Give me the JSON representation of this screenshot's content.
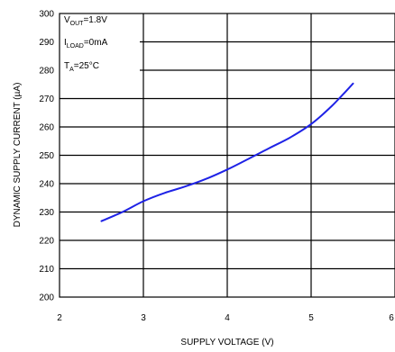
{
  "chart_data": {
    "type": "line",
    "xlabel": "SUPPLY VOLTAGE (V)",
    "ylabel": "DYNAMIC SUPPLY CURRENT (µA)",
    "xlim": [
      2,
      6
    ],
    "ylim": [
      200,
      300
    ],
    "x_ticks": [
      "2",
      "3",
      "4",
      "5",
      "6"
    ],
    "y_ticks": [
      "200",
      "210",
      "220",
      "230",
      "240",
      "250",
      "260",
      "270",
      "280",
      "290",
      "300"
    ],
    "grid": true,
    "line_color": "#1e22e6",
    "annotations": {
      "vout_base": "V",
      "vout_sub": "OUT",
      "vout_val": "=1.8V",
      "iload_base": "I",
      "iload_sub": "LOAD",
      "iload_val": "=0mA",
      "ta_base": "T",
      "ta_sub": "A",
      "ta_val": "=25°C"
    },
    "series": [
      {
        "x": [
          2.5,
          2.75,
          3.0,
          3.25,
          3.5,
          3.75,
          4.0,
          4.25,
          4.5,
          4.75,
          5.0,
          5.25,
          5.5
        ],
        "values": [
          226.8,
          230.0,
          233.8,
          236.7,
          239.0,
          241.7,
          245.0,
          248.7,
          252.5,
          256.3,
          261.0,
          267.5,
          275.3
        ]
      }
    ]
  }
}
